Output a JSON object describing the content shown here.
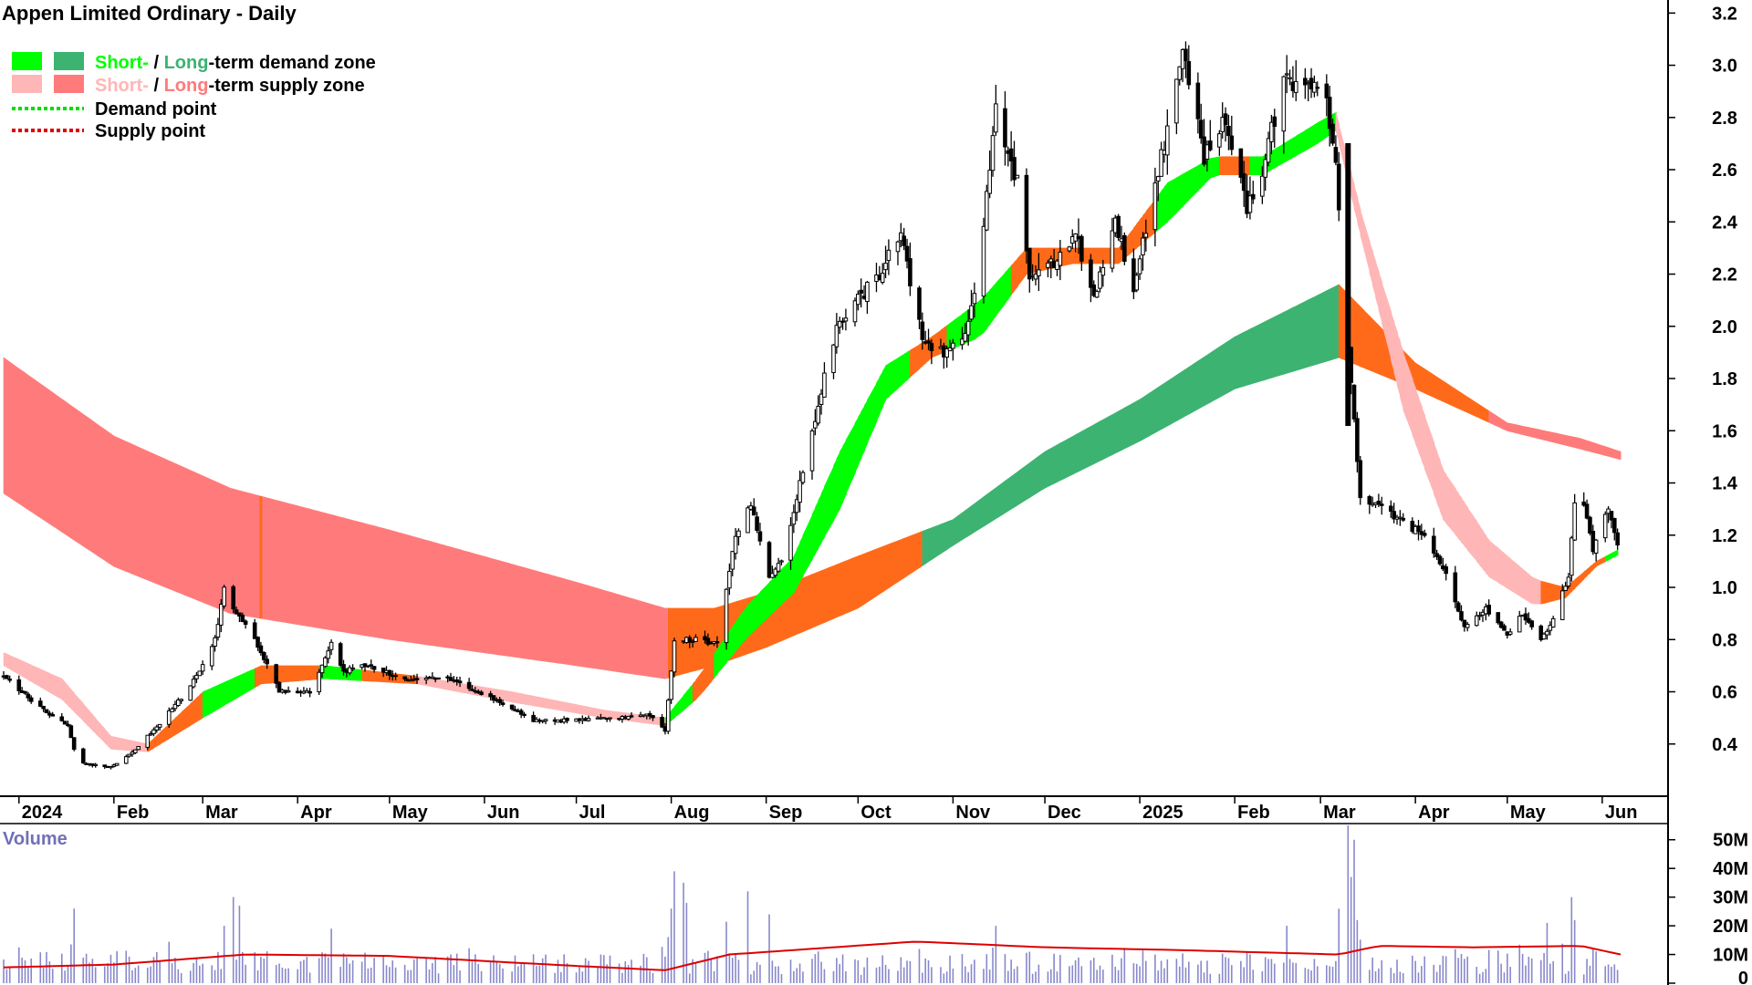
{
  "chart_data": {
    "type": "candlestick",
    "title": "Appen Limited Ordinary - Daily",
    "legend": {
      "placement": "top-left",
      "demand_short": "Short-",
      "demand_sep": " / ",
      "demand_long": "Long",
      "demand_rest": "-term demand zone",
      "supply_short": "Short-",
      "supply_sep": " / ",
      "supply_long": "Long",
      "supply_rest": "-term supply zone",
      "demand_point": "Demand point",
      "supply_point": "Supply point"
    },
    "colors": {
      "short_demand": "#00ff00",
      "long_demand": "#3cb371",
      "short_supply": "#ffb6b6",
      "long_supply": "#ff7b7b",
      "short_conflict": "#ff6a1a",
      "demand_point": "#00dd00",
      "supply_point": "#dd0000",
      "volume_bar": "#8888cc",
      "volume_ma": "#dd0000"
    },
    "x_axis": {
      "labels": [
        "2024",
        "Feb",
        "Mar",
        "Apr",
        "May",
        "Jun",
        "Jul",
        "Aug",
        "Sep",
        "Oct",
        "Nov",
        "Dec",
        "2025",
        "Feb",
        "Mar",
        "Apr",
        "May",
        "Jun"
      ],
      "start": "2023-12-27",
      "end": "2025-06-07"
    },
    "y_axis": {
      "ticks": [
        "3.2",
        "3.0",
        "2.8",
        "2.6",
        "2.4",
        "2.2",
        "2.0",
        "1.8",
        "1.6",
        "1.4",
        "1.2",
        "1.0",
        "0.8",
        "0.6",
        "0.4"
      ],
      "range": [
        0.2,
        3.25
      ],
      "side": "right"
    },
    "price_keyframes": [
      [
        "2023-12-27",
        0.66
      ],
      [
        "2024-01-10",
        0.52
      ],
      [
        "2024-01-17",
        0.47
      ],
      [
        "2024-01-20",
        0.33
      ],
      [
        "2024-01-31",
        0.31
      ],
      [
        "2024-02-08",
        0.38
      ],
      [
        "2024-02-16",
        0.48
      ],
      [
        "2024-02-26",
        0.62
      ],
      [
        "2024-03-05",
        0.8
      ],
      [
        "2024-03-08",
        1.0
      ],
      [
        "2024-03-12",
        0.9
      ],
      [
        "2024-03-19",
        0.78
      ],
      [
        "2024-03-26",
        0.6
      ],
      [
        "2024-04-05",
        0.6
      ],
      [
        "2024-04-12",
        0.78
      ],
      [
        "2024-04-16",
        0.68
      ],
      [
        "2024-04-23",
        0.7
      ],
      [
        "2024-05-06",
        0.65
      ],
      [
        "2024-05-20",
        0.65
      ],
      [
        "2024-06-03",
        0.58
      ],
      [
        "2024-06-17",
        0.49
      ],
      [
        "2024-07-01",
        0.49
      ],
      [
        "2024-07-15",
        0.5
      ],
      [
        "2024-07-24",
        0.52
      ],
      [
        "2024-07-30",
        0.45
      ],
      [
        "2024-08-02",
        0.8
      ],
      [
        "2024-08-10",
        0.8
      ],
      [
        "2024-08-16",
        0.78
      ],
      [
        "2024-08-22",
        1.2
      ],
      [
        "2024-08-27",
        1.32
      ],
      [
        "2024-09-02",
        1.05
      ],
      [
        "2024-09-06",
        1.1
      ],
      [
        "2024-09-13",
        1.45
      ],
      [
        "2024-09-24",
        2.0
      ],
      [
        "2024-10-01",
        2.1
      ],
      [
        "2024-10-08",
        2.2
      ],
      [
        "2024-10-15",
        2.35
      ],
      [
        "2024-10-22",
        1.95
      ],
      [
        "2024-10-29",
        1.9
      ],
      [
        "2024-11-04",
        1.95
      ],
      [
        "2024-11-08",
        2.1
      ],
      [
        "2024-11-15",
        2.82
      ],
      [
        "2024-11-22",
        2.55
      ],
      [
        "2024-11-26",
        2.2
      ],
      [
        "2024-12-04",
        2.25
      ],
      [
        "2024-12-11",
        2.35
      ],
      [
        "2024-12-17",
        2.1
      ],
      [
        "2024-12-24",
        2.4
      ],
      [
        "2024-12-30",
        2.15
      ],
      [
        "2025-01-08",
        2.65
      ],
      [
        "2025-01-15",
        3.05
      ],
      [
        "2025-01-22",
        2.65
      ],
      [
        "2025-01-29",
        2.8
      ],
      [
        "2025-02-05",
        2.45
      ],
      [
        "2025-02-10",
        2.6
      ],
      [
        "2025-02-17",
        2.95
      ],
      [
        "2025-02-25",
        2.92
      ],
      [
        "2025-03-03",
        2.86
      ],
      [
        "2025-03-06",
        2.6
      ],
      [
        "2025-03-10",
        1.95
      ],
      [
        "2025-03-12",
        1.65
      ],
      [
        "2025-03-14",
        1.35
      ],
      [
        "2025-03-21",
        1.3
      ],
      [
        "2025-03-28",
        1.25
      ],
      [
        "2025-04-04",
        1.2
      ],
      [
        "2025-04-10",
        1.08
      ],
      [
        "2025-04-17",
        0.85
      ],
      [
        "2025-04-24",
        0.92
      ],
      [
        "2025-05-01",
        0.82
      ],
      [
        "2025-05-06",
        0.9
      ],
      [
        "2025-05-12",
        0.8
      ],
      [
        "2025-05-16",
        0.88
      ],
      [
        "2025-05-21",
        1.05
      ],
      [
        "2025-05-24",
        1.45
      ],
      [
        "2025-05-29",
        1.15
      ],
      [
        "2025-06-03",
        1.3
      ],
      [
        "2025-06-07",
        1.1
      ]
    ],
    "zones": {
      "long_upper": [
        [
          "2023-12-27",
          1.88
        ],
        [
          "2024-02-01",
          1.58
        ],
        [
          "2024-03-10",
          1.38
        ],
        [
          "2024-05-01",
          1.22
        ],
        [
          "2024-07-01",
          1.02
        ],
        [
          "2024-07-30",
          0.92
        ],
        [
          "2024-08-15",
          0.92
        ],
        [
          "2024-09-01",
          0.98
        ],
        [
          "2024-10-01",
          1.12
        ],
        [
          "2024-11-01",
          1.26
        ],
        [
          "2024-12-01",
          1.52
        ],
        [
          "2025-01-01",
          1.72
        ],
        [
          "2025-02-01",
          1.96
        ],
        [
          "2025-03-07",
          2.16
        ],
        [
          "2025-04-01",
          1.86
        ],
        [
          "2025-05-01",
          1.63
        ],
        [
          "2025-05-25",
          1.57
        ],
        [
          "2025-06-07",
          1.52
        ]
      ],
      "long_lower": [
        [
          "2023-12-27",
          1.36
        ],
        [
          "2024-02-01",
          1.08
        ],
        [
          "2024-03-10",
          0.9
        ],
        [
          "2024-05-01",
          0.8
        ],
        [
          "2024-07-01",
          0.7
        ],
        [
          "2024-07-30",
          0.65
        ],
        [
          "2024-08-15",
          0.7
        ],
        [
          "2024-09-01",
          0.77
        ],
        [
          "2024-10-01",
          0.92
        ],
        [
          "2024-11-01",
          1.16
        ],
        [
          "2024-12-01",
          1.38
        ],
        [
          "2025-01-01",
          1.56
        ],
        [
          "2025-02-01",
          1.76
        ],
        [
          "2025-03-07",
          1.88
        ],
        [
          "2025-04-01",
          1.76
        ],
        [
          "2025-05-01",
          1.6
        ],
        [
          "2025-05-25",
          1.53
        ],
        [
          "2025-06-07",
          1.49
        ]
      ],
      "long_demand_from": "2024-10-22",
      "long_demand_to": "2025-03-07",
      "short_upper": [
        [
          "2023-12-27",
          0.75
        ],
        [
          "2024-01-15",
          0.65
        ],
        [
          "2024-01-31",
          0.43
        ],
        [
          "2024-02-12",
          0.4
        ],
        [
          "2024-03-01",
          0.6
        ],
        [
          "2024-03-20",
          0.7
        ],
        [
          "2024-04-10",
          0.7
        ],
        [
          "2024-05-10",
          0.66
        ],
        [
          "2024-06-10",
          0.6
        ],
        [
          "2024-07-10",
          0.53
        ],
        [
          "2024-07-30",
          0.5
        ],
        [
          "2024-08-10",
          0.66
        ],
        [
          "2024-08-25",
          0.92
        ],
        [
          "2024-09-10",
          1.12
        ],
        [
          "2024-09-25",
          1.52
        ],
        [
          "2024-10-10",
          1.85
        ],
        [
          "2024-10-25",
          1.96
        ],
        [
          "2024-11-10",
          2.1
        ],
        [
          "2024-11-25",
          2.3
        ],
        [
          "2024-12-10",
          2.3
        ],
        [
          "2024-12-25",
          2.3
        ],
        [
          "2025-01-10",
          2.55
        ],
        [
          "2025-01-25",
          2.65
        ],
        [
          "2025-02-10",
          2.65
        ],
        [
          "2025-02-28",
          2.78
        ],
        [
          "2025-03-06",
          2.82
        ],
        [
          "2025-03-15",
          2.4
        ],
        [
          "2025-03-28",
          1.9
        ],
        [
          "2025-04-10",
          1.45
        ],
        [
          "2025-04-25",
          1.18
        ],
        [
          "2025-05-10",
          1.03
        ],
        [
          "2025-05-20",
          1.0
        ],
        [
          "2025-05-30",
          1.1
        ],
        [
          "2025-06-07",
          1.15
        ]
      ],
      "short_lower": [
        [
          "2023-12-27",
          0.7
        ],
        [
          "2024-01-15",
          0.57
        ],
        [
          "2024-01-31",
          0.38
        ],
        [
          "2024-02-12",
          0.37
        ],
        [
          "2024-03-01",
          0.5
        ],
        [
          "2024-03-20",
          0.63
        ],
        [
          "2024-04-10",
          0.65
        ],
        [
          "2024-05-10",
          0.63
        ],
        [
          "2024-06-10",
          0.56
        ],
        [
          "2024-07-10",
          0.5
        ],
        [
          "2024-07-30",
          0.47
        ],
        [
          "2024-08-10",
          0.58
        ],
        [
          "2024-08-25",
          0.8
        ],
        [
          "2024-09-10",
          0.98
        ],
        [
          "2024-09-25",
          1.3
        ],
        [
          "2024-10-10",
          1.72
        ],
        [
          "2024-10-25",
          1.88
        ],
        [
          "2024-11-10",
          1.96
        ],
        [
          "2024-11-25",
          2.2
        ],
        [
          "2024-12-10",
          2.24
        ],
        [
          "2024-12-25",
          2.24
        ],
        [
          "2025-01-10",
          2.4
        ],
        [
          "2025-01-25",
          2.58
        ],
        [
          "2025-02-10",
          2.58
        ],
        [
          "2025-02-28",
          2.7
        ],
        [
          "2025-03-06",
          2.75
        ],
        [
          "2025-03-15",
          2.3
        ],
        [
          "2025-03-28",
          1.68
        ],
        [
          "2025-04-10",
          1.26
        ],
        [
          "2025-04-25",
          1.04
        ],
        [
          "2025-05-10",
          0.93
        ],
        [
          "2025-05-20",
          0.96
        ],
        [
          "2025-05-30",
          1.08
        ],
        [
          "2025-06-07",
          1.13
        ]
      ],
      "short_states": [
        [
          "2023-12-27",
          "supply"
        ],
        [
          "2024-02-12",
          "conflict"
        ],
        [
          "2024-03-01",
          "demand"
        ],
        [
          "2024-03-18",
          "conflict"
        ],
        [
          "2024-04-08",
          "demand"
        ],
        [
          "2024-04-22",
          "conflict"
        ],
        [
          "2024-05-10",
          "supply"
        ],
        [
          "2024-07-30",
          "demand"
        ],
        [
          "2024-08-08",
          "conflict"
        ],
        [
          "2024-08-15",
          "demand"
        ],
        [
          "2024-10-18",
          "conflict"
        ],
        [
          "2024-10-30",
          "demand"
        ],
        [
          "2024-11-20",
          "conflict"
        ],
        [
          "2025-01-05",
          "demand"
        ],
        [
          "2025-01-25",
          "conflict"
        ],
        [
          "2025-02-06",
          "demand"
        ],
        [
          "2025-03-06",
          "supply"
        ],
        [
          "2025-05-12",
          "conflict"
        ],
        [
          "2025-06-01",
          "demand"
        ]
      ]
    },
    "volume": {
      "title": "Volume",
      "ticks": [
        "50M",
        "40M",
        "30M",
        "20M",
        "10M",
        "0"
      ],
      "range": [
        0,
        55000000
      ],
      "baseline": 8000000,
      "spikes": [
        [
          "2024-01-19",
          26000000
        ],
        [
          "2024-03-08",
          20000000
        ],
        [
          "2024-03-11",
          30000000
        ],
        [
          "2024-03-13",
          27000000
        ],
        [
          "2024-04-12",
          19000000
        ],
        [
          "2024-08-01",
          26000000
        ],
        [
          "2024-08-02",
          39000000
        ],
        [
          "2024-08-05",
          35000000
        ],
        [
          "2024-08-06",
          28000000
        ],
        [
          "2024-08-26",
          32000000
        ],
        [
          "2024-09-02",
          24000000
        ],
        [
          "2024-11-15",
          20000000
        ],
        [
          "2025-02-18",
          20000000
        ],
        [
          "2025-03-07",
          26000000
        ],
        [
          "2025-03-10",
          55000000
        ],
        [
          "2025-03-11",
          37000000
        ],
        [
          "2025-03-12",
          50000000
        ],
        [
          "2025-03-13",
          22000000
        ],
        [
          "2025-05-22",
          30000000
        ],
        [
          "2025-05-23",
          22000000
        ],
        [
          "2025-05-14",
          21000000
        ]
      ],
      "ma": [
        [
          "2023-12-27",
          5500000
        ],
        [
          "2024-02-01",
          6500000
        ],
        [
          "2024-03-15",
          10000000
        ],
        [
          "2024-05-01",
          9500000
        ],
        [
          "2024-07-01",
          6000000
        ],
        [
          "2024-07-30",
          4500000
        ],
        [
          "2024-08-20",
          10000000
        ],
        [
          "2024-10-20",
          14500000
        ],
        [
          "2024-12-01",
          12500000
        ],
        [
          "2025-01-15",
          11500000
        ],
        [
          "2025-03-07",
          10000000
        ],
        [
          "2025-03-20",
          13000000
        ],
        [
          "2025-04-20",
          12500000
        ],
        [
          "2025-05-25",
          13000000
        ],
        [
          "2025-06-07",
          10000000
        ]
      ]
    }
  }
}
